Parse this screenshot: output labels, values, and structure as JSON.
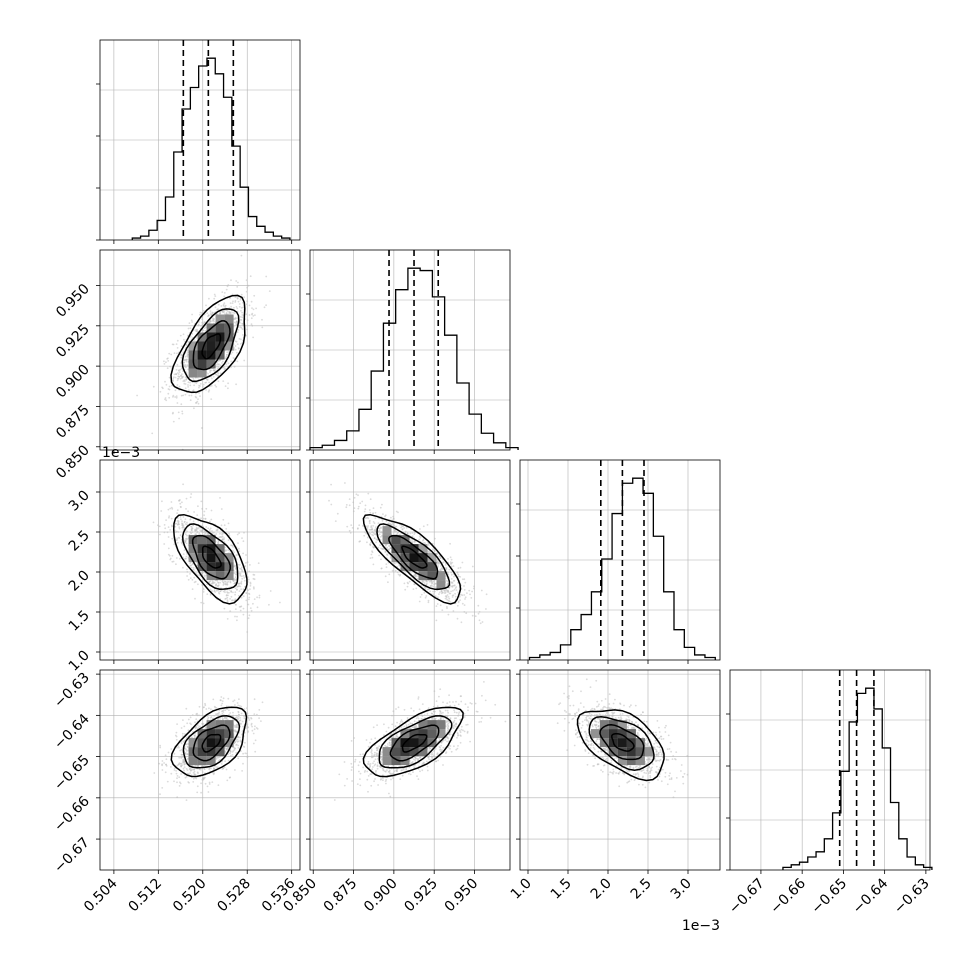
{
  "chart_data": {
    "type": "corner",
    "parameters": [
      {
        "id": "p0",
        "range": [
          0.5015,
          0.5375
        ],
        "ticks": [
          0.504,
          0.512,
          0.52,
          0.528,
          0.536
        ],
        "tick_labels": [
          "0.504",
          "0.512",
          "0.520",
          "0.528",
          "0.536"
        ],
        "offset": "",
        "mean": 0.5215,
        "sd": 0.0033,
        "quantiles": [
          0.5165,
          0.521,
          0.5255
        ],
        "hist": [
          1,
          2,
          5,
          10,
          22,
          45,
          67,
          78,
          89,
          93,
          85,
          73,
          48,
          27,
          12,
          7,
          4,
          2,
          1
        ]
      },
      {
        "id": "p1",
        "range": [
          0.848,
          0.972
        ],
        "ticks": [
          0.85,
          0.875,
          0.9,
          0.925,
          0.95
        ],
        "tick_labels": [
          "0.850",
          "0.875",
          "0.900",
          "0.925",
          "0.950"
        ],
        "offset": "",
        "mean": 0.9125,
        "sd": 0.015,
        "quantiles": [
          0.897,
          0.9125,
          0.9275
        ],
        "hist": [
          1,
          2,
          4,
          8,
          17,
          33,
          53,
          67,
          76,
          75,
          64,
          48,
          28,
          15,
          7,
          3,
          1
        ]
      },
      {
        "id": "p2",
        "range": [
          0.0009,
          0.0034
        ],
        "ticks": [
          0.001,
          0.0015,
          0.002,
          0.0025,
          0.003
        ],
        "tick_labels": [
          "1.0",
          "1.5",
          "2.0",
          "2.5",
          "3.0"
        ],
        "offset": "1e−3",
        "mean": 0.00218,
        "sd": 0.00027,
        "quantiles": [
          0.00191,
          0.00218,
          0.00245
        ],
        "hist": [
          1,
          2,
          3,
          6,
          12,
          18,
          27,
          40,
          58,
          70,
          72,
          66,
          49,
          27,
          12,
          5,
          2,
          1
        ]
      },
      {
        "id": "p3",
        "range": [
          -0.6775,
          -0.629
        ],
        "ticks": [
          -0.67,
          -0.66,
          -0.65,
          -0.64,
          -0.63
        ],
        "tick_labels": [
          "−0.67",
          "−0.66",
          "−0.65",
          "−0.64",
          "−0.63"
        ],
        "offset": "",
        "mean": -0.6466,
        "sd": 0.0042,
        "quantiles": [
          -0.6509,
          -0.6468,
          -0.6426
        ],
        "hist": [
          1,
          2,
          3,
          5,
          7,
          12,
          22,
          38,
          57,
          68,
          70,
          62,
          47,
          26,
          12,
          5,
          2,
          1
        ]
      }
    ],
    "pairs": [
      {
        "x": "p0",
        "y": "p1",
        "corr": 0.6
      },
      {
        "x": "p0",
        "y": "p2",
        "corr": -0.6
      },
      {
        "x": "p1",
        "y": "p2",
        "corr": -0.8
      },
      {
        "x": "p0",
        "y": "p3",
        "corr": 0.5
      },
      {
        "x": "p1",
        "y": "p3",
        "corr": 0.65
      },
      {
        "x": "p2",
        "y": "p3",
        "corr": -0.5
      }
    ],
    "quantile_levels": [
      0.16,
      0.5,
      0.84
    ],
    "grid": true,
    "colors": {
      "scatter": "#bdbdbd",
      "contour": "#000000",
      "hist": "#000000",
      "grid": "#b0b0b0"
    }
  }
}
